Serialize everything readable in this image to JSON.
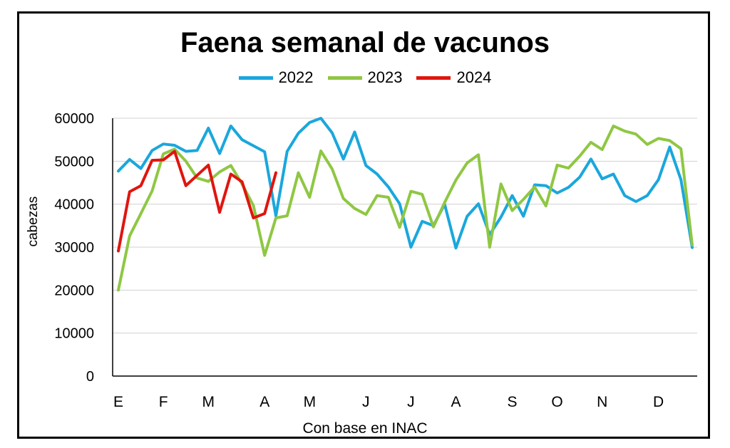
{
  "chart_data": {
    "type": "line",
    "title": "Faena semanal de vacunos",
    "xlabel": "Con base en INAC",
    "ylabel": "cabezas",
    "ylim": [
      0,
      60000
    ],
    "yticks": [
      0,
      10000,
      20000,
      30000,
      40000,
      50000,
      60000
    ],
    "grid": true,
    "legend_position": "top",
    "x_unit": "week",
    "month_labels": [
      {
        "label": "E",
        "week": 1
      },
      {
        "label": "F",
        "week": 5
      },
      {
        "label": "M",
        "week": 9
      },
      {
        "label": "A",
        "week": 14
      },
      {
        "label": "M",
        "week": 18
      },
      {
        "label": "J",
        "week": 23
      },
      {
        "label": "J",
        "week": 27
      },
      {
        "label": "A",
        "week": 31
      },
      {
        "label": "S",
        "week": 36
      },
      {
        "label": "O",
        "week": 40
      },
      {
        "label": "N",
        "week": 44
      },
      {
        "label": "D",
        "week": 49
      }
    ],
    "series": [
      {
        "name": "2022",
        "color": "#1aa7dc",
        "values": [
          47700,
          50400,
          48300,
          52500,
          54000,
          53700,
          52300,
          52500,
          57700,
          51800,
          58200,
          55000,
          53600,
          52200,
          37300,
          52300,
          56500,
          59000,
          60000,
          56600,
          50500,
          56800,
          49000,
          47000,
          44000,
          40100,
          30000,
          36000,
          35000,
          40000,
          29800,
          37200,
          40100,
          32900,
          37000,
          42000,
          37200,
          44500,
          44300,
          42600,
          43900,
          46300,
          50500,
          45900,
          47000,
          42000,
          40600,
          42000,
          45700,
          53300,
          45700,
          29900
        ]
      },
      {
        "name": "2023",
        "color": "#8fc743",
        "values": [
          20000,
          32600,
          37800,
          43100,
          51700,
          52800,
          50000,
          46100,
          45300,
          47500,
          49000,
          44700,
          39700,
          28100,
          36800,
          37300,
          47300,
          41600,
          52400,
          48200,
          41300,
          39000,
          37600,
          42000,
          41600,
          34600,
          43000,
          42300,
          34700,
          40400,
          45600,
          49600,
          51500,
          30000,
          44700,
          38500,
          41100,
          44000,
          39600,
          49100,
          48400,
          51200,
          54400,
          52700,
          58200,
          57000,
          56300,
          53900,
          55300,
          54800,
          52900,
          30500
        ]
      },
      {
        "name": "2024",
        "color": "#e0150f",
        "values": [
          29100,
          42900,
          44300,
          50200,
          50300,
          52300,
          44300,
          46700,
          49100,
          38100,
          47000,
          45200,
          36800,
          37800,
          47300
        ]
      }
    ]
  }
}
